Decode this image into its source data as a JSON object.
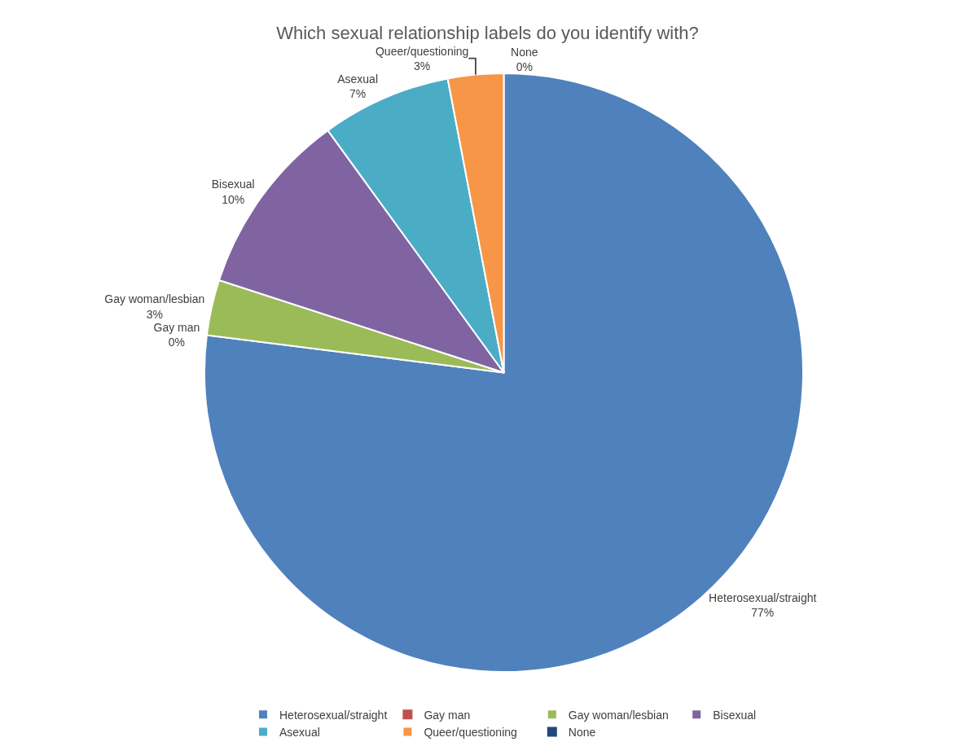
{
  "chart_data": {
    "type": "pie",
    "title": "Which sexual relationship labels do you identify with?",
    "categories": [
      "Heterosexual/straight",
      "Gay man",
      "Gay woman/lesbian",
      "Bisexual",
      "Asexual",
      "Queer/questioning",
      "None"
    ],
    "values": [
      77,
      0,
      3,
      10,
      7,
      3,
      0
    ],
    "value_labels": [
      "77%",
      "0%",
      "3%",
      "10%",
      "7%",
      "3%",
      "0%"
    ],
    "colors": [
      "#4f81bd",
      "#c0504d",
      "#9bbb59",
      "#8064a2",
      "#4bacc6",
      "#f79646",
      "#1f497d"
    ],
    "legend": "bottom"
  }
}
